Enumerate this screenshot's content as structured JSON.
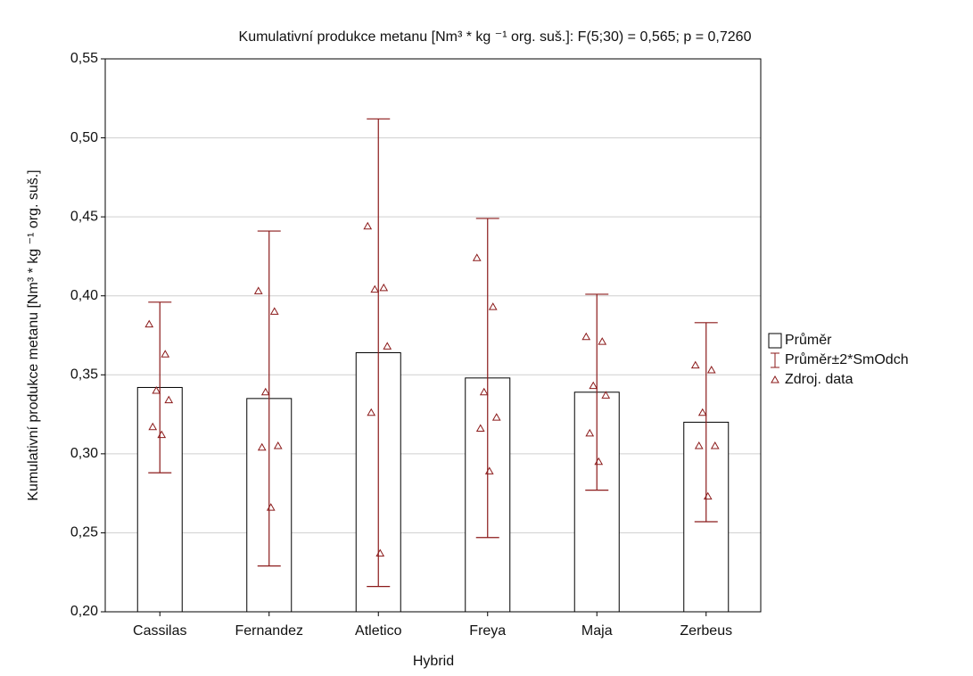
{
  "chart_data": {
    "type": "bar",
    "title": "Kumulativní produkce metanu [Nm³ * kg ⁻¹ org. suš.]:   F(5;30) = 0,565; p = 0,7260",
    "x_label": "Hybrid",
    "y_label": "Kumulativní produkce metanu [Nm³ * kg ⁻¹ org. suš.]",
    "categories": [
      "Cassilas",
      "Fernandez",
      "Atletico",
      "Freya",
      "Maja",
      "Zerbeus"
    ],
    "series": [
      {
        "name": "Průměr",
        "color": "#000000",
        "values": [
          0.342,
          0.335,
          0.364,
          0.348,
          0.339,
          0.32
        ]
      },
      {
        "name": "Průměr±2*SmOdch",
        "color": "#8b1a1a",
        "values": [
          0.054,
          0.106,
          0.148,
          0.101,
          0.062,
          0.063
        ]
      },
      {
        "name": "Zdroj. data",
        "color": "#8b1a1a",
        "values": [
          [
            0.382,
            0.363,
            0.34,
            0.334,
            0.317,
            0.312
          ],
          [
            0.403,
            0.39,
            0.339,
            0.305,
            0.304,
            0.266
          ],
          [
            0.444,
            0.405,
            0.404,
            0.368,
            0.326,
            0.237
          ],
          [
            0.424,
            0.393,
            0.339,
            0.323,
            0.316,
            0.289
          ],
          [
            0.374,
            0.371,
            0.343,
            0.337,
            0.313,
            0.295
          ],
          [
            0.356,
            0.353,
            0.326,
            0.305,
            0.305,
            0.273
          ]
        ]
      }
    ],
    "ylim": [
      0.2,
      0.55
    ],
    "yticks": [
      {
        "value": 0.2,
        "label": "0,20"
      },
      {
        "value": 0.25,
        "label": "0,25"
      },
      {
        "value": 0.3,
        "label": "0,30"
      },
      {
        "value": 0.35,
        "label": "0,35"
      },
      {
        "value": 0.4,
        "label": "0,40"
      },
      {
        "value": 0.45,
        "label": "0,45"
      },
      {
        "value": 0.5,
        "label": "0,50"
      },
      {
        "value": 0.55,
        "label": "0,55"
      }
    ],
    "grid": true,
    "legend": "right"
  }
}
